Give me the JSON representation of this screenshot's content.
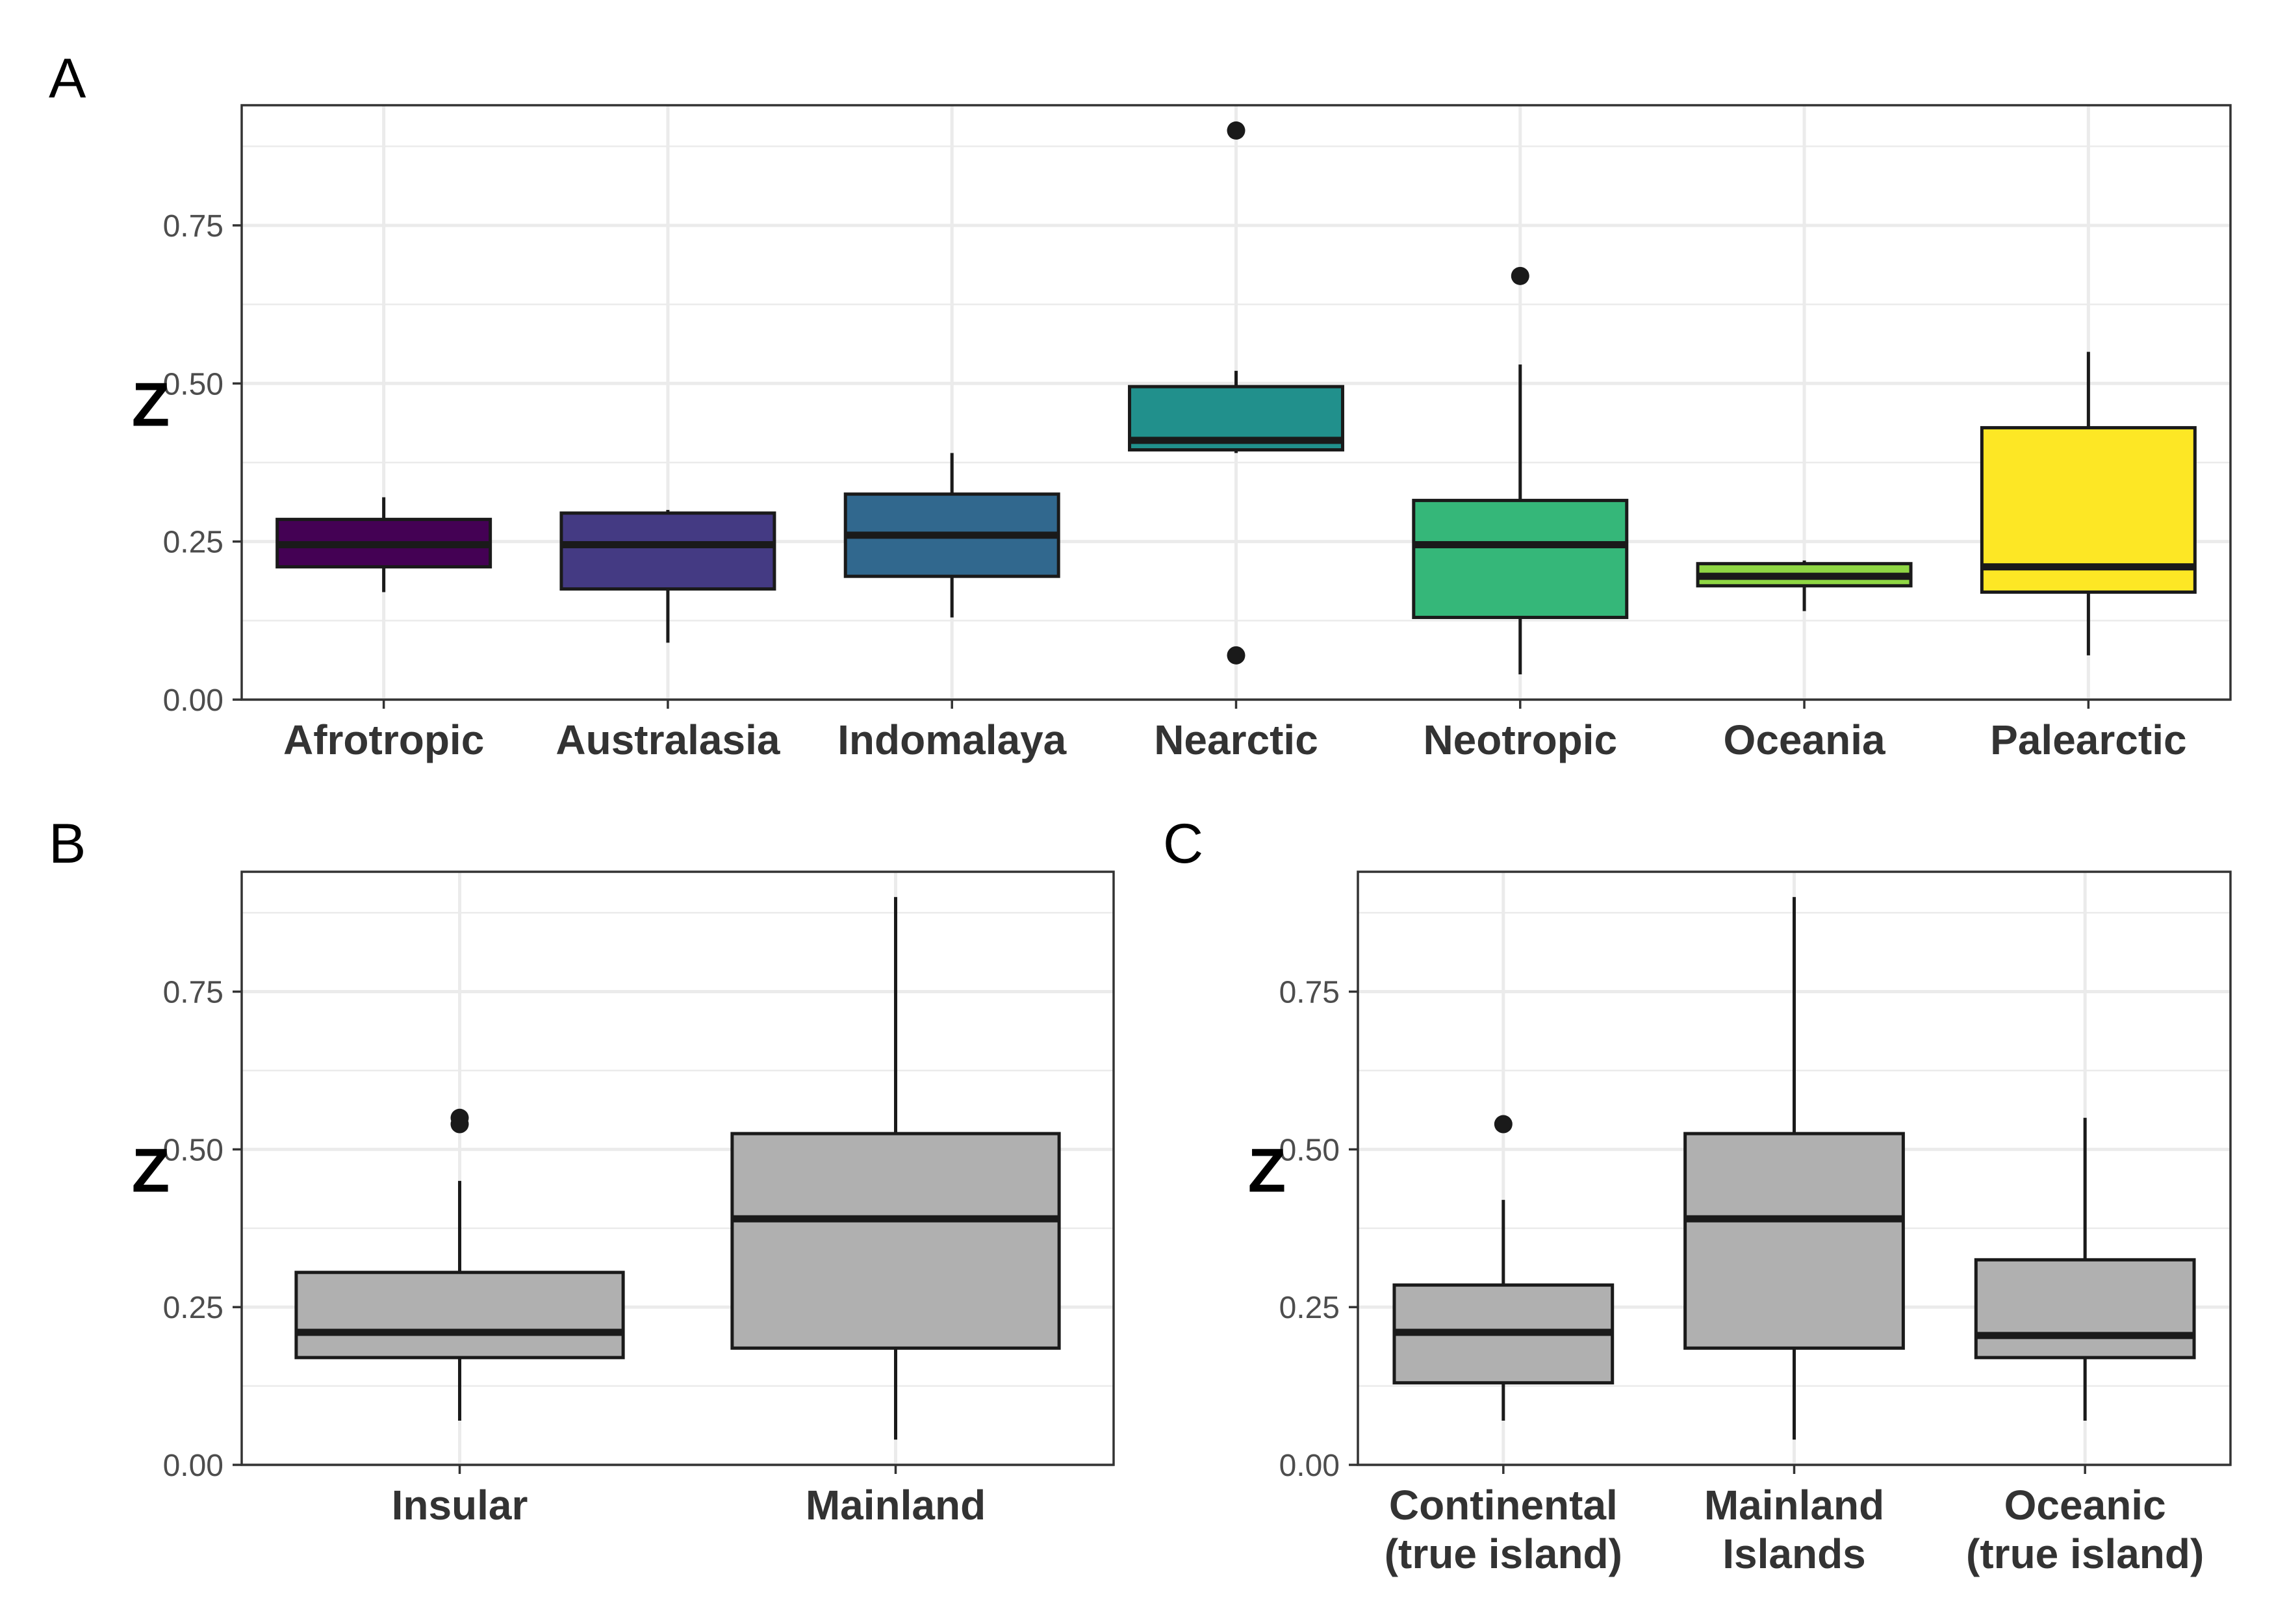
{
  "chart_data": [
    {
      "panel": "A",
      "type": "boxplot",
      "ylabel": "Z",
      "ylim": [
        0,
        0.94
      ],
      "yticks": [
        0,
        0.25,
        0.5,
        0.75
      ],
      "ytick_labels": [
        "0.00",
        "0.25",
        "0.50",
        "0.75"
      ],
      "grid": true,
      "categories": [
        {
          "label": [
            "Afrotropic"
          ],
          "fill": "#440154",
          "whisker_low": 0.17,
          "q1": 0.21,
          "median": 0.245,
          "q3": 0.285,
          "whisker_high": 0.32,
          "outliers": []
        },
        {
          "label": [
            "Australasia"
          ],
          "fill": "#443A83",
          "whisker_low": 0.09,
          "q1": 0.175,
          "median": 0.245,
          "q3": 0.295,
          "whisker_high": 0.3,
          "outliers": []
        },
        {
          "label": [
            "Indomalaya"
          ],
          "fill": "#31688E",
          "whisker_low": 0.13,
          "q1": 0.195,
          "median": 0.26,
          "q3": 0.325,
          "whisker_high": 0.39,
          "outliers": []
        },
        {
          "label": [
            "Nearctic"
          ],
          "fill": "#21908C",
          "whisker_low": 0.39,
          "q1": 0.395,
          "median": 0.41,
          "q3": 0.495,
          "whisker_high": 0.52,
          "outliers": [
            0.9,
            0.07
          ]
        },
        {
          "label": [
            "Neotropic"
          ],
          "fill": "#35B779",
          "whisker_low": 0.04,
          "q1": 0.13,
          "median": 0.245,
          "q3": 0.315,
          "whisker_high": 0.53,
          "outliers": [
            0.67
          ]
        },
        {
          "label": [
            "Oceania"
          ],
          "fill": "#8FD744",
          "whisker_low": 0.14,
          "q1": 0.18,
          "median": 0.195,
          "q3": 0.215,
          "whisker_high": 0.22,
          "outliers": []
        },
        {
          "label": [
            "Palearctic"
          ],
          "fill": "#FDE725",
          "whisker_low": 0.07,
          "q1": 0.17,
          "median": 0.21,
          "q3": 0.43,
          "whisker_high": 0.55,
          "outliers": []
        }
      ]
    },
    {
      "panel": "B",
      "type": "boxplot",
      "ylabel": "Z",
      "ylim": [
        0,
        0.94
      ],
      "yticks": [
        0,
        0.25,
        0.5,
        0.75
      ],
      "ytick_labels": [
        "0.00",
        "0.25",
        "0.50",
        "0.75"
      ],
      "grid": true,
      "categories": [
        {
          "label": [
            "Insular"
          ],
          "fill": "#B0B0B0",
          "whisker_low": 0.07,
          "q1": 0.17,
          "median": 0.21,
          "q3": 0.305,
          "whisker_high": 0.45,
          "outliers": [
            0.55,
            0.54
          ]
        },
        {
          "label": [
            "Mainland"
          ],
          "fill": "#B0B0B0",
          "whisker_low": 0.04,
          "q1": 0.185,
          "median": 0.39,
          "q3": 0.525,
          "whisker_high": 0.9,
          "outliers": []
        }
      ]
    },
    {
      "panel": "C",
      "type": "boxplot",
      "ylabel": "Z",
      "ylim": [
        0,
        0.94
      ],
      "yticks": [
        0,
        0.25,
        0.5,
        0.75
      ],
      "ytick_labels": [
        "0.00",
        "0.25",
        "0.50",
        "0.75"
      ],
      "grid": true,
      "categories": [
        {
          "label": [
            "Continental",
            "(true island)"
          ],
          "fill": "#B0B0B0",
          "whisker_low": 0.07,
          "q1": 0.13,
          "median": 0.21,
          "q3": 0.285,
          "whisker_high": 0.42,
          "outliers": [
            0.54
          ]
        },
        {
          "label": [
            "Mainland",
            "Islands"
          ],
          "fill": "#B0B0B0",
          "whisker_low": 0.04,
          "q1": 0.185,
          "median": 0.39,
          "q3": 0.525,
          "whisker_high": 0.9,
          "outliers": []
        },
        {
          "label": [
            "Oceanic",
            "(true island)"
          ],
          "fill": "#B0B0B0",
          "whisker_low": 0.07,
          "q1": 0.17,
          "median": 0.205,
          "q3": 0.325,
          "whisker_high": 0.55,
          "outliers": []
        }
      ]
    }
  ]
}
